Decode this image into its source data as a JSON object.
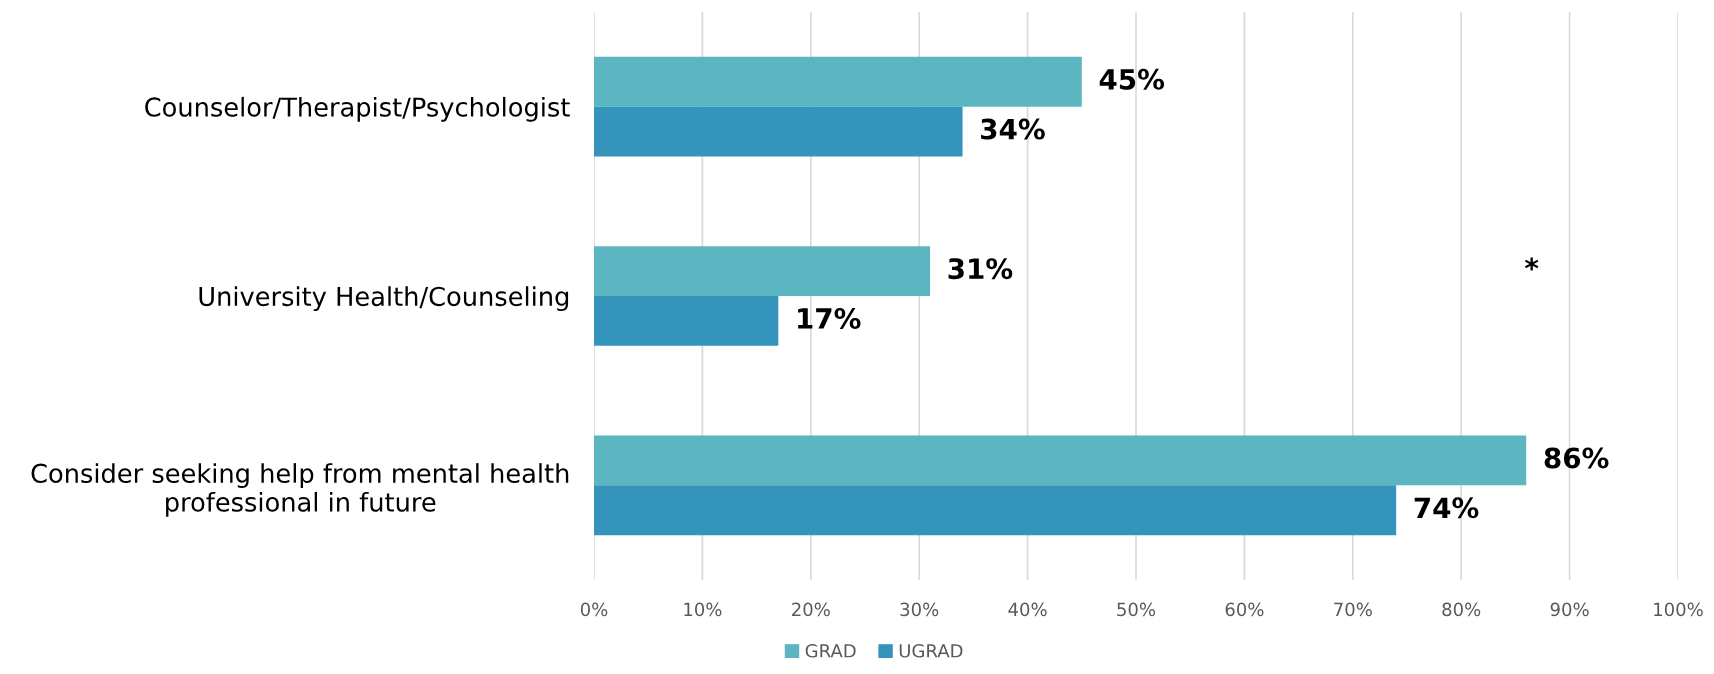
{
  "chart_data": {
    "type": "bar",
    "orientation": "horizontal",
    "categories": [
      "Counselor/Therapist/Psychologist",
      "University Health/Counseling",
      "Consider seeking help from mental health\nprofessional in future"
    ],
    "series": [
      {
        "name": "GRAD",
        "color": "#5bb6c1",
        "values": [
          45,
          31,
          86
        ],
        "value_labels": [
          "45%",
          "31%",
          "86%"
        ]
      },
      {
        "name": "UGRAD",
        "color": "#3594bb",
        "values": [
          34,
          17,
          74
        ],
        "value_labels": [
          "34%",
          "17%",
          "74%"
        ]
      }
    ],
    "xlim": [
      0,
      100
    ],
    "xticks": [
      {
        "value": 0,
        "label": "0%"
      },
      {
        "value": 10,
        "label": "10%"
      },
      {
        "value": 20,
        "label": "20%"
      },
      {
        "value": 30,
        "label": "30%"
      },
      {
        "value": 40,
        "label": "40%"
      },
      {
        "value": 50,
        "label": "50%"
      },
      {
        "value": 60,
        "label": "60%"
      },
      {
        "value": 70,
        "label": "70%"
      },
      {
        "value": 80,
        "label": "80%"
      },
      {
        "value": 90,
        "label": "90%"
      },
      {
        "value": 100,
        "label": "100%"
      }
    ],
    "grid": "x",
    "legend": "bottom",
    "annotations": [
      "*"
    ]
  }
}
